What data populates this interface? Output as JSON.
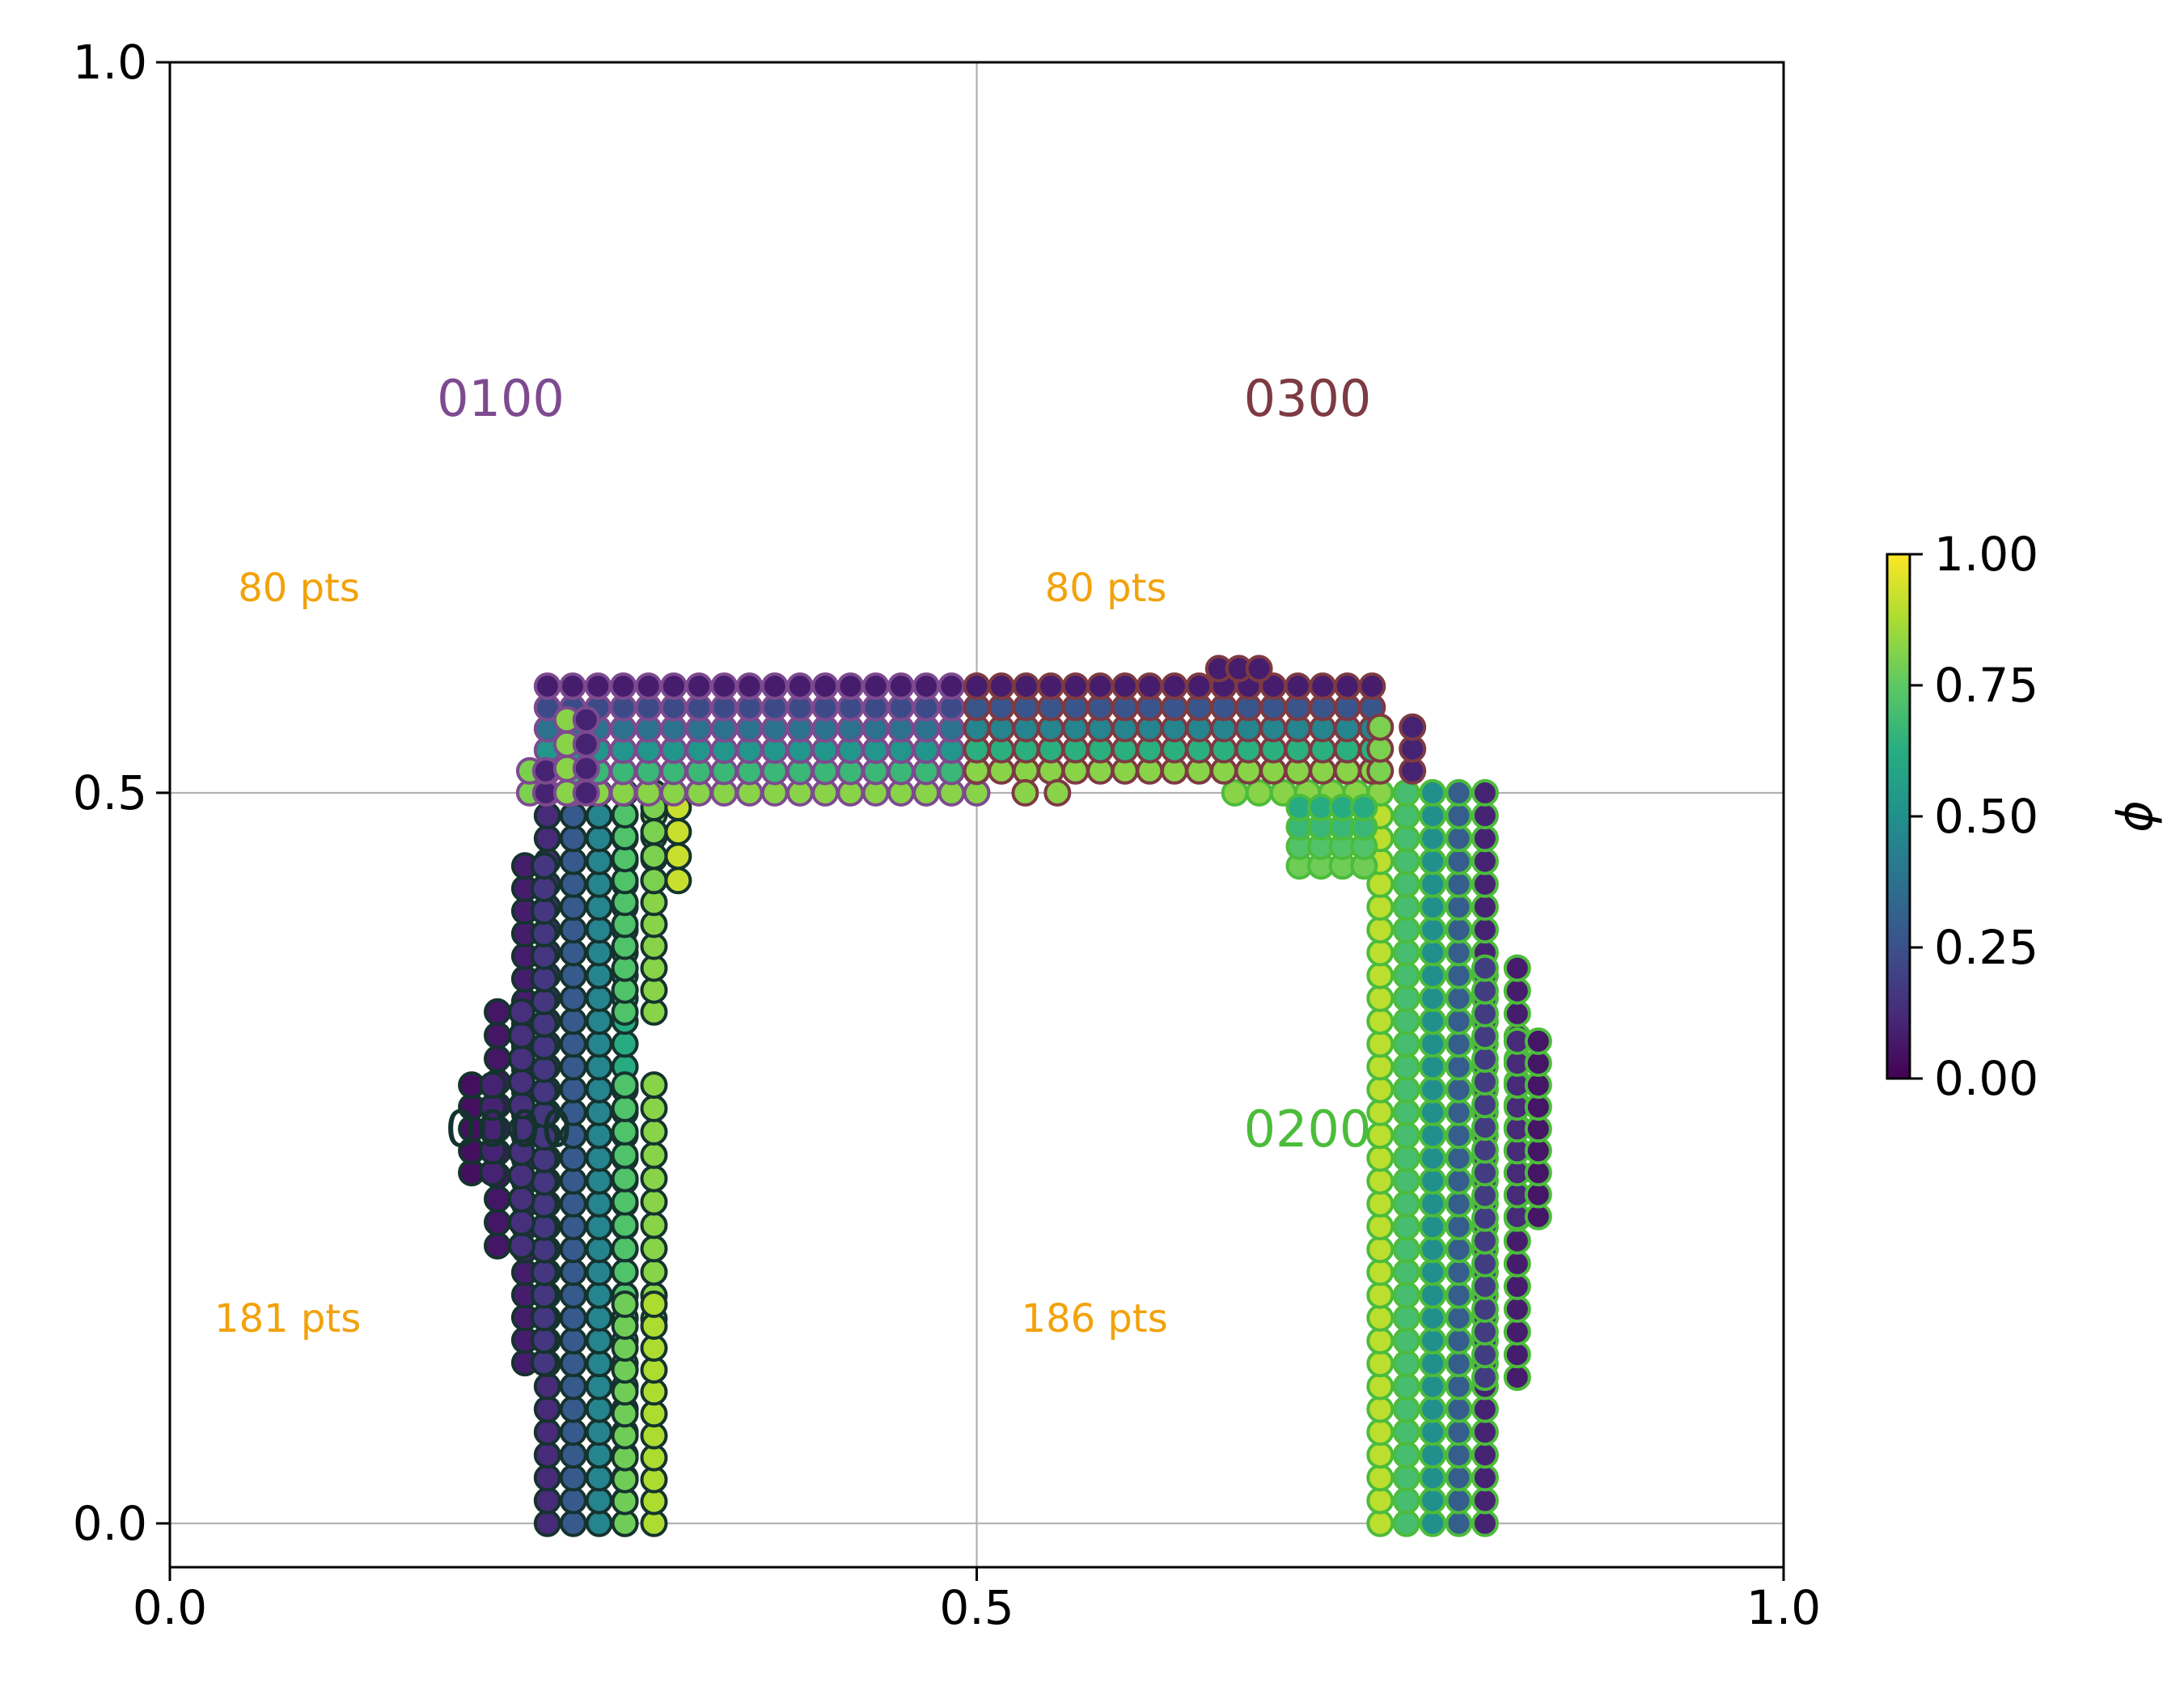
{
  "chart_data": {
    "type": "scatter",
    "xlim": [
      0.0,
      1.0
    ],
    "ylim": [
      -0.03,
      1.0
    ],
    "x_ticks": [
      {
        "value": 0.0,
        "label": "0.0"
      },
      {
        "value": 0.5,
        "label": "0.5"
      },
      {
        "value": 1.0,
        "label": "1.0"
      }
    ],
    "y_ticks": [
      {
        "value": 0.0,
        "label": "0.0"
      },
      {
        "value": 0.5,
        "label": "0.5"
      },
      {
        "value": 1.0,
        "label": "1.0"
      }
    ],
    "grid": true,
    "grid_lines": {
      "x": [
        0.5
      ],
      "y": [
        0.0,
        0.5
      ]
    },
    "colormap": "viridis",
    "colorbar": {
      "label": "ϕ",
      "range": [
        0.0,
        1.0
      ],
      "ticks": [
        {
          "value": 0.0,
          "label": "0.00"
        },
        {
          "value": 0.25,
          "label": "0.25"
        },
        {
          "value": 0.5,
          "label": "0.50"
        },
        {
          "value": 0.75,
          "label": "0.75"
        },
        {
          "value": 1.0,
          "label": "1.00"
        }
      ]
    },
    "partitions": [
      {
        "id": "0000",
        "edge_color": "#15332e",
        "label": {
          "text": "0000",
          "x": 0.21,
          "y": 0.27
        },
        "count": {
          "text": "181 pts",
          "x": 0.073,
          "y": 0.14
        },
        "regions": [
          {
            "x0": 0.234,
            "x1": 0.282,
            "y0": 0.0,
            "y1": 0.5,
            "phi0": 0.12,
            "phi1": 0.62
          },
          {
            "x0": 0.282,
            "x1": 0.3,
            "y0": 0.35,
            "y1": 0.5,
            "phi0": 0.72,
            "phi1": 0.82
          },
          {
            "x0": 0.282,
            "x1": 0.3,
            "y0": 0.14,
            "y1": 0.3,
            "phi0": 0.72,
            "phi1": 0.82
          },
          {
            "x0": 0.282,
            "x1": 0.3,
            "y0": 0.0,
            "y1": 0.15,
            "phi0": 0.78,
            "phi1": 0.88
          },
          {
            "x0": 0.22,
            "x1": 0.232,
            "y0": 0.11,
            "y1": 0.45,
            "phi0": 0.08,
            "phi1": 0.16
          },
          {
            "x0": 0.203,
            "x1": 0.218,
            "y0": 0.19,
            "y1": 0.35,
            "phi0": 0.06,
            "phi1": 0.14
          },
          {
            "x0": 0.187,
            "x1": 0.2,
            "y0": 0.24,
            "y1": 0.3,
            "phi0": 0.04,
            "phi1": 0.1
          },
          {
            "x0": 0.3,
            "x1": 0.315,
            "y0": 0.44,
            "y1": 0.49,
            "phi0": 0.8,
            "phi1": 0.92
          }
        ]
      },
      {
        "id": "0100",
        "edge_color": "#7d4a8f",
        "label": {
          "text": "0100",
          "x": 0.205,
          "y": 0.77
        },
        "count": {
          "text": "80 pts",
          "x": 0.08,
          "y": 0.64
        },
        "regions": [
          {
            "x0": 0.234,
            "x1": 0.5,
            "y0": 0.5,
            "y1": 0.573,
            "phi0": 0.82,
            "phi1": 0.08
          },
          {
            "x0": 0.223,
            "x1": 0.233,
            "y0": 0.5,
            "y1": 0.515,
            "phi0": 0.8,
            "phi1": 0.1
          },
          {
            "x0": 0.246,
            "x1": 0.258,
            "y0": 0.5,
            "y1": 0.55,
            "phi0": 0.82,
            "phi1": 0.1
          }
        ]
      },
      {
        "id": "0200",
        "edge_color": "#4cbc3b",
        "label": {
          "text": "0200",
          "x": 0.705,
          "y": 0.27
        },
        "count": {
          "text": "186 pts",
          "x": 0.573,
          "y": 0.14
        },
        "regions": [
          {
            "x0": 0.75,
            "x1": 0.815,
            "y0": 0.0,
            "y1": 0.5,
            "phi0": 0.9,
            "phi1": 0.1
          },
          {
            "x0": 0.815,
            "x1": 0.835,
            "y0": 0.1,
            "y1": 0.38,
            "phi0": 0.18,
            "phi1": 0.08
          },
          {
            "x0": 0.835,
            "x1": 0.848,
            "y0": 0.21,
            "y1": 0.33,
            "phi0": 0.12,
            "phi1": 0.06
          },
          {
            "x0": 0.66,
            "x1": 0.75,
            "y0": 0.5,
            "y1": 0.5,
            "phi0": 0.82,
            "phi1": 0.78
          },
          {
            "x0": 0.7,
            "x1": 0.74,
            "y0": 0.45,
            "y1": 0.49,
            "phi0": 0.78,
            "phi1": 0.62
          }
        ]
      },
      {
        "id": "0300",
        "edge_color": "#7e3a42",
        "label": {
          "text": "0300",
          "x": 0.705,
          "y": 0.77
        },
        "count": {
          "text": "80 pts",
          "x": 0.58,
          "y": 0.64
        },
        "regions": [
          {
            "x0": 0.5,
            "x1": 0.745,
            "y0": 0.515,
            "y1": 0.573,
            "phi0": 0.82,
            "phi1": 0.08
          },
          {
            "x0": 0.65,
            "x1": 0.675,
            "y0": 0.585,
            "y1": 0.585,
            "phi0": 0.08,
            "phi1": 0.08
          },
          {
            "x0": 0.75,
            "x1": 0.77,
            "y0": 0.515,
            "y1": 0.545,
            "phi0": 0.8,
            "phi1": 0.1
          },
          {
            "x0": 0.53,
            "x1": 0.55,
            "y0": 0.5,
            "y1": 0.5,
            "phi0": 0.82,
            "phi1": 0.82
          }
        ]
      }
    ]
  }
}
